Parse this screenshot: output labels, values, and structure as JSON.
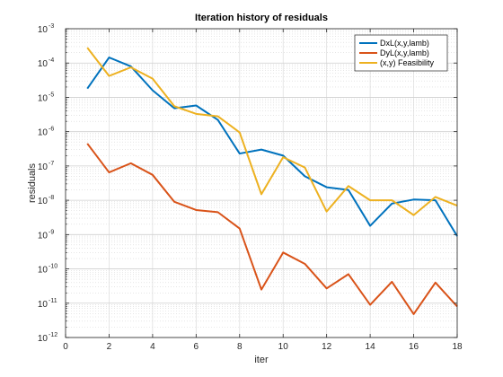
{
  "chart_data": {
    "type": "line",
    "title": "Iteration history of residuals",
    "xlabel": "iter",
    "ylabel": "residuals",
    "xlim": [
      0,
      18
    ],
    "ylim": [
      1e-12,
      0.001
    ],
    "yscale": "log",
    "grid": true,
    "minor_grid": true,
    "legend_position": "top-right",
    "x_ticks": [
      "0",
      "2",
      "4",
      "6",
      "8",
      "10",
      "12",
      "14",
      "16",
      "18"
    ],
    "y_tick_bases": [
      "10",
      "10",
      "10",
      "10",
      "10",
      "10",
      "10",
      "10",
      "10",
      "10"
    ],
    "y_tick_exponents": [
      "-12",
      "-11",
      "-10",
      "-9",
      "-8",
      "-7",
      "-6",
      "-5",
      "-4",
      "-3"
    ],
    "x": [
      1,
      2,
      3,
      4,
      5,
      6,
      7,
      8,
      9,
      10,
      11,
      12,
      13,
      14,
      15,
      16,
      17,
      18
    ],
    "series": [
      {
        "name": "DxL(x,y,lamb)",
        "color": "#0072bd",
        "values": [
          1.8e-05,
          0.000145,
          8e-05,
          1.6e-05,
          4.8e-06,
          5.8e-06,
          2.2e-06,
          2.3e-07,
          3e-07,
          2e-07,
          5e-08,
          2.4e-08,
          2e-08,
          1.8e-09,
          8e-09,
          1.05e-08,
          1e-08,
          9e-10
        ]
      },
      {
        "name": "DyL(x,y,lamb)",
        "color": "#d95319",
        "values": [
          4.5e-07,
          6.5e-08,
          1.2e-07,
          5.5e-08,
          9e-09,
          5.2e-09,
          4.5e-09,
          1.5e-09,
          2.5e-11,
          3e-10,
          1.4e-10,
          2.7e-11,
          7e-11,
          9e-12,
          4.2e-11,
          4.8e-12,
          4e-11,
          8e-12
        ]
      },
      {
        "name": "(x,y) Feasibility",
        "color": "#edb120",
        "values": [
          0.00028,
          4.2e-05,
          7.5e-05,
          3.5e-05,
          5.5e-06,
          3.3e-06,
          2.8e-06,
          9.5e-07,
          1.5e-08,
          1.8e-07,
          9e-08,
          4.7e-09,
          2.6e-08,
          1e-08,
          1e-08,
          3.7e-09,
          1.25e-08,
          7e-09
        ]
      }
    ]
  }
}
